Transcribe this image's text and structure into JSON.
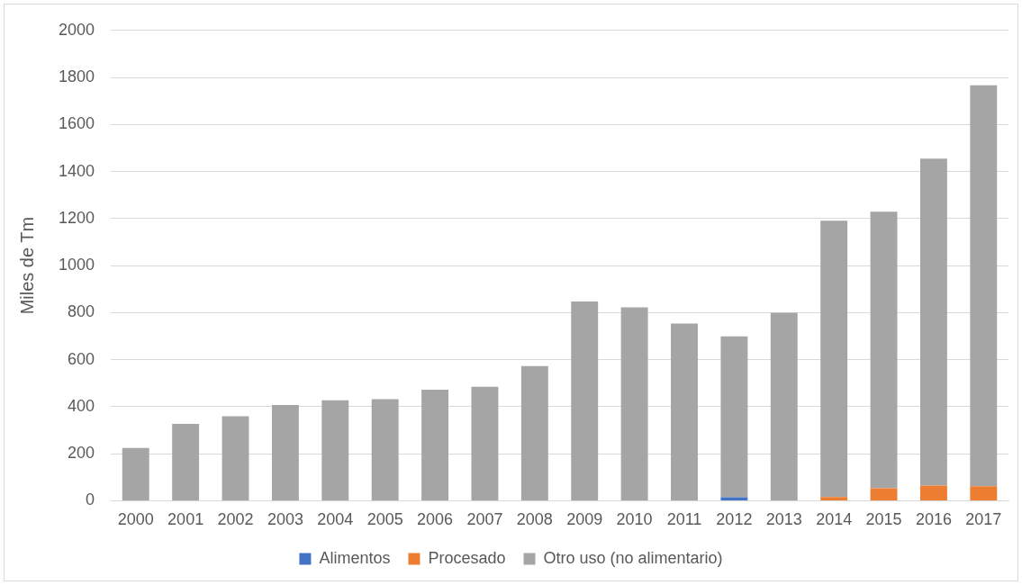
{
  "chart_data": {
    "type": "bar",
    "stacked": true,
    "ylabel": "Miles de Tm",
    "categories": [
      "2000",
      "2001",
      "2002",
      "2003",
      "2004",
      "2005",
      "2006",
      "2007",
      "2008",
      "2009",
      "2010",
      "2011",
      "2012",
      "2013",
      "2014",
      "2015",
      "2016",
      "2017"
    ],
    "series": [
      {
        "name": "Alimentos",
        "color": "#4472c4",
        "values": [
          0,
          0,
          0,
          0,
          0,
          0,
          0,
          0,
          0,
          0,
          0,
          0,
          15,
          0,
          0,
          0,
          0,
          0
        ]
      },
      {
        "name": "Procesado",
        "color": "#ed7d31",
        "values": [
          0,
          0,
          0,
          0,
          0,
          0,
          0,
          0,
          0,
          0,
          0,
          0,
          0,
          0,
          16,
          53,
          65,
          62
        ]
      },
      {
        "name": "Otro uso (no alimentario)",
        "color": "#a5a5a5",
        "values": [
          224,
          327,
          359,
          407,
          427,
          432,
          472,
          485,
          573,
          847,
          822,
          754,
          684,
          799,
          1175,
          1176,
          1390,
          1705
        ]
      }
    ],
    "ylim": [
      0,
      2000
    ],
    "yticks": [
      0,
      200,
      400,
      600,
      800,
      1000,
      1200,
      1400,
      1600,
      1800,
      2000
    ],
    "grid": "y",
    "legend": "bottom"
  }
}
